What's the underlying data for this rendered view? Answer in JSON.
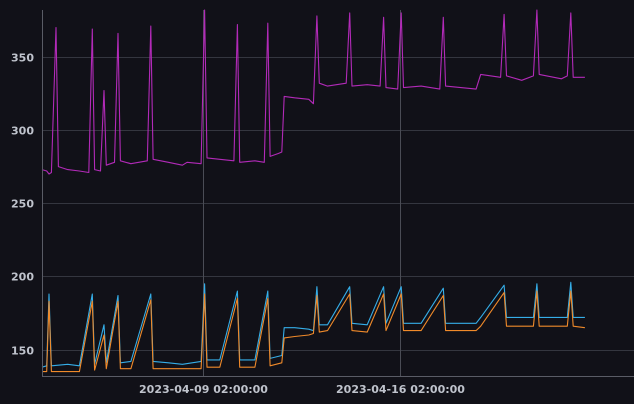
{
  "chart_data": {
    "type": "line",
    "title": "",
    "xlabel": "",
    "ylabel": "",
    "ylim": [
      132,
      382
    ],
    "yticks": [
      150,
      200,
      250,
      300,
      350
    ],
    "ytick_labels": [
      "150",
      "200",
      "250",
      "300",
      "350"
    ],
    "xlim": [
      "2023-04-03 08:00",
      "2023-04-24 10:00"
    ],
    "xticks": [
      "2023-04-09 02:00:00",
      "2023-04-16 02:00:00"
    ],
    "grid": true,
    "legend": "none",
    "series": [
      {
        "color": "#b22ab8",
        "points": [
          [
            "2023-04-03 08:00",
            273
          ],
          [
            "2023-04-03 12:00",
            272
          ],
          [
            "2023-04-03 14:00",
            270
          ],
          [
            "2023-04-03 16:00",
            271
          ],
          [
            "2023-04-03 20:00",
            370
          ],
          [
            "2023-04-03 22:00",
            275
          ],
          [
            "2023-04-04 06:00",
            273
          ],
          [
            "2023-04-04 16:00",
            272
          ],
          [
            "2023-04-05 00:00",
            271
          ],
          [
            "2023-04-05 03:00",
            369
          ],
          [
            "2023-04-05 05:00",
            273
          ],
          [
            "2023-04-05 10:00",
            272
          ],
          [
            "2023-04-05 13:00",
            327
          ],
          [
            "2023-04-05 15:00",
            276
          ],
          [
            "2023-04-05 22:00",
            278
          ],
          [
            "2023-04-06 01:00",
            366
          ],
          [
            "2023-04-06 03:00",
            279
          ],
          [
            "2023-04-06 12:00",
            277
          ],
          [
            "2023-04-07 02:00",
            279
          ],
          [
            "2023-04-07 05:00",
            371
          ],
          [
            "2023-04-07 07:00",
            280
          ],
          [
            "2023-04-07 20:00",
            278
          ],
          [
            "2023-04-08 08:00",
            276
          ],
          [
            "2023-04-08 12:00",
            278
          ],
          [
            "2023-04-09 00:00",
            277
          ],
          [
            "2023-04-09 03:00",
            382
          ],
          [
            "2023-04-09 05:00",
            281
          ],
          [
            "2023-04-09 16:00",
            280
          ],
          [
            "2023-04-10 04:00",
            279
          ],
          [
            "2023-04-10 07:00",
            372
          ],
          [
            "2023-04-10 09:00",
            278
          ],
          [
            "2023-04-10 22:00",
            279
          ],
          [
            "2023-04-11 06:00",
            278
          ],
          [
            "2023-04-11 09:00",
            373
          ],
          [
            "2023-04-11 11:00",
            282
          ],
          [
            "2023-04-11 18:00",
            284
          ],
          [
            "2023-04-11 21:00",
            285
          ],
          [
            "2023-04-11 23:00",
            323
          ],
          [
            "2023-04-12 08:00",
            322
          ],
          [
            "2023-04-12 20:00",
            321
          ],
          [
            "2023-04-13 00:00",
            318
          ],
          [
            "2023-04-13 03:00",
            378
          ],
          [
            "2023-04-13 05:00",
            332
          ],
          [
            "2023-04-13 12:00",
            330
          ],
          [
            "2023-04-14 04:00",
            332
          ],
          [
            "2023-04-14 07:00",
            380
          ],
          [
            "2023-04-14 09:00",
            330
          ],
          [
            "2023-04-14 22:00",
            331
          ],
          [
            "2023-04-15 09:00",
            330
          ],
          [
            "2023-04-15 12:00",
            377
          ],
          [
            "2023-04-15 14:00",
            329
          ],
          [
            "2023-04-16 00:00",
            328
          ],
          [
            "2023-04-16 03:00",
            380
          ],
          [
            "2023-04-16 05:00",
            329
          ],
          [
            "2023-04-16 20:00",
            330
          ],
          [
            "2023-04-17 12:00",
            328
          ],
          [
            "2023-04-17 15:00",
            377
          ],
          [
            "2023-04-17 17:00",
            330
          ],
          [
            "2023-04-18 06:00",
            329
          ],
          [
            "2023-04-18 19:00",
            328
          ],
          [
            "2023-04-18 23:00",
            338
          ],
          [
            "2023-04-19 16:00",
            336
          ],
          [
            "2023-04-19 19:00",
            379
          ],
          [
            "2023-04-19 21:00",
            337
          ],
          [
            "2023-04-20 10:00",
            334
          ],
          [
            "2023-04-20 20:00",
            337
          ],
          [
            "2023-04-20 23:00",
            382
          ],
          [
            "2023-04-21 01:00",
            338
          ],
          [
            "2023-04-21 20:00",
            335
          ],
          [
            "2023-04-22 01:00",
            337
          ],
          [
            "2023-04-22 04:00",
            380
          ],
          [
            "2023-04-22 06:00",
            336
          ],
          [
            "2023-04-22 16:00",
            336
          ]
        ]
      },
      {
        "color": "#35aee8",
        "points": [
          [
            "2023-04-03 08:00",
            138
          ],
          [
            "2023-04-03 12:00",
            139
          ],
          [
            "2023-04-03 14:00",
            188
          ],
          [
            "2023-04-03 16:00",
            139
          ],
          [
            "2023-04-04 06:00",
            140
          ],
          [
            "2023-04-04 16:00",
            139
          ],
          [
            "2023-04-05 03:00",
            188
          ],
          [
            "2023-04-05 05:00",
            140
          ],
          [
            "2023-04-05 13:00",
            167
          ],
          [
            "2023-04-05 15:00",
            141
          ],
          [
            "2023-04-06 01:00",
            187
          ],
          [
            "2023-04-06 03:00",
            141
          ],
          [
            "2023-04-06 12:00",
            142
          ],
          [
            "2023-04-07 05:00",
            188
          ],
          [
            "2023-04-07 07:00",
            142
          ],
          [
            "2023-04-07 20:00",
            141
          ],
          [
            "2023-04-08 08:00",
            140
          ],
          [
            "2023-04-09 00:00",
            142
          ],
          [
            "2023-04-09 03:00",
            195
          ],
          [
            "2023-04-09 05:00",
            143
          ],
          [
            "2023-04-09 16:00",
            143
          ],
          [
            "2023-04-10 07:00",
            190
          ],
          [
            "2023-04-10 09:00",
            143
          ],
          [
            "2023-04-10 22:00",
            143
          ],
          [
            "2023-04-11 09:00",
            190
          ],
          [
            "2023-04-11 11:00",
            144
          ],
          [
            "2023-04-11 21:00",
            146
          ],
          [
            "2023-04-11 23:00",
            165
          ],
          [
            "2023-04-12 08:00",
            165
          ],
          [
            "2023-04-12 20:00",
            164
          ],
          [
            "2023-04-13 00:00",
            163
          ],
          [
            "2023-04-13 03:00",
            193
          ],
          [
            "2023-04-13 05:00",
            167
          ],
          [
            "2023-04-13 12:00",
            167
          ],
          [
            "2023-04-14 07:00",
            193
          ],
          [
            "2023-04-14 09:00",
            168
          ],
          [
            "2023-04-14 22:00",
            167
          ],
          [
            "2023-04-15 12:00",
            193
          ],
          [
            "2023-04-15 14:00",
            168
          ],
          [
            "2023-04-16 03:00",
            193
          ],
          [
            "2023-04-16 05:00",
            168
          ],
          [
            "2023-04-16 20:00",
            168
          ],
          [
            "2023-04-17 15:00",
            192
          ],
          [
            "2023-04-17 17:00",
            168
          ],
          [
            "2023-04-18 19:00",
            168
          ],
          [
            "2023-04-18 23:00",
            172
          ],
          [
            "2023-04-19 19:00",
            194
          ],
          [
            "2023-04-19 21:00",
            172
          ],
          [
            "2023-04-20 20:00",
            172
          ],
          [
            "2023-04-20 23:00",
            195
          ],
          [
            "2023-04-21 01:00",
            172
          ],
          [
            "2023-04-22 01:00",
            172
          ],
          [
            "2023-04-22 04:00",
            196
          ],
          [
            "2023-04-22 06:00",
            172
          ],
          [
            "2023-04-22 16:00",
            172
          ]
        ]
      },
      {
        "color": "#f08a2a",
        "points": [
          [
            "2023-04-03 08:00",
            135
          ],
          [
            "2023-04-03 12:00",
            135
          ],
          [
            "2023-04-03 14:00",
            183
          ],
          [
            "2023-04-03 16:00",
            135
          ],
          [
            "2023-04-04 06:00",
            135
          ],
          [
            "2023-04-04 16:00",
            135
          ],
          [
            "2023-04-05 03:00",
            183
          ],
          [
            "2023-04-05 05:00",
            136
          ],
          [
            "2023-04-05 13:00",
            160
          ],
          [
            "2023-04-05 15:00",
            137
          ],
          [
            "2023-04-06 01:00",
            183
          ],
          [
            "2023-04-06 03:00",
            137
          ],
          [
            "2023-04-06 12:00",
            137
          ],
          [
            "2023-04-07 05:00",
            184
          ],
          [
            "2023-04-07 07:00",
            137
          ],
          [
            "2023-04-07 20:00",
            137
          ],
          [
            "2023-04-08 08:00",
            137
          ],
          [
            "2023-04-09 00:00",
            137
          ],
          [
            "2023-04-09 03:00",
            188
          ],
          [
            "2023-04-09 05:00",
            138
          ],
          [
            "2023-04-09 16:00",
            138
          ],
          [
            "2023-04-10 07:00",
            185
          ],
          [
            "2023-04-10 09:00",
            138
          ],
          [
            "2023-04-10 22:00",
            138
          ],
          [
            "2023-04-11 09:00",
            185
          ],
          [
            "2023-04-11 11:00",
            139
          ],
          [
            "2023-04-11 21:00",
            141
          ],
          [
            "2023-04-11 23:00",
            158
          ],
          [
            "2023-04-12 08:00",
            159
          ],
          [
            "2023-04-12 20:00",
            160
          ],
          [
            "2023-04-13 00:00",
            161
          ],
          [
            "2023-04-13 03:00",
            187
          ],
          [
            "2023-04-13 05:00",
            162
          ],
          [
            "2023-04-13 12:00",
            163
          ],
          [
            "2023-04-14 07:00",
            188
          ],
          [
            "2023-04-14 09:00",
            163
          ],
          [
            "2023-04-14 22:00",
            162
          ],
          [
            "2023-04-15 12:00",
            188
          ],
          [
            "2023-04-15 14:00",
            163
          ],
          [
            "2023-04-16 03:00",
            188
          ],
          [
            "2023-04-16 05:00",
            163
          ],
          [
            "2023-04-16 20:00",
            163
          ],
          [
            "2023-04-17 15:00",
            187
          ],
          [
            "2023-04-17 17:00",
            163
          ],
          [
            "2023-04-18 19:00",
            163
          ],
          [
            "2023-04-18 23:00",
            166
          ],
          [
            "2023-04-19 19:00",
            189
          ],
          [
            "2023-04-19 21:00",
            166
          ],
          [
            "2023-04-20 20:00",
            166
          ],
          [
            "2023-04-20 23:00",
            190
          ],
          [
            "2023-04-21 01:00",
            166
          ],
          [
            "2023-04-22 01:00",
            166
          ],
          [
            "2023-04-22 04:00",
            190
          ],
          [
            "2023-04-22 06:00",
            166
          ],
          [
            "2023-04-22 16:00",
            165
          ]
        ]
      }
    ]
  }
}
